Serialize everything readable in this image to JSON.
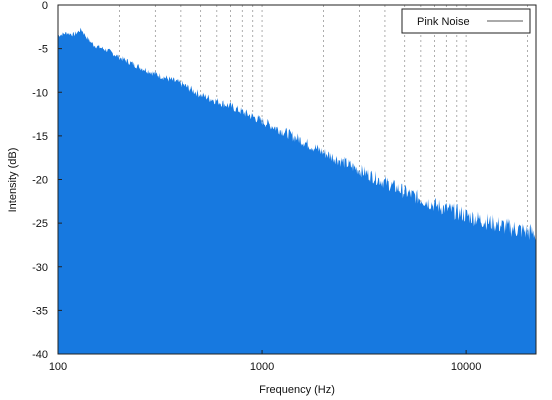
{
  "chart_data": {
    "type": "area",
    "title": "",
    "xlabel": "Frequency (Hz)",
    "ylabel": "Intensity (dB)",
    "x_scale": "log",
    "xlim": [
      100,
      22000
    ],
    "ylim": [
      -40,
      0
    ],
    "x_ticks": [
      100,
      1000,
      10000
    ],
    "x_tick_labels": [
      "100",
      "1000",
      "10000"
    ],
    "y_ticks": [
      0,
      -5,
      -10,
      -15,
      -20,
      -25,
      -30,
      -35,
      -40
    ],
    "y_tick_labels": [
      "0",
      "-5",
      "-10",
      "-15",
      "-20",
      "-25",
      "-30",
      "-35",
      "-40"
    ],
    "grid": "dotted, log-spaced vertical lines",
    "legend_position": "top-right",
    "series": [
      {
        "name": "Pink Noise",
        "color": "#1779e0",
        "x": [
          100,
          110,
          120,
          130,
          140,
          150,
          175,
          200,
          250,
          300,
          400,
          500,
          700,
          1000,
          1500,
          2000,
          3000,
          5000,
          7000,
          10000,
          15000,
          22000
        ],
        "y": [
          -3.5,
          -3.2,
          -3.4,
          -2.8,
          -3.9,
          -4.6,
          -5.2,
          -6.0,
          -7.1,
          -7.9,
          -9.0,
          -10.3,
          -11.6,
          -13.3,
          -15.3,
          -16.9,
          -18.9,
          -21.4,
          -22.9,
          -24.1,
          -25.3,
          -26.2
        ]
      }
    ]
  }
}
